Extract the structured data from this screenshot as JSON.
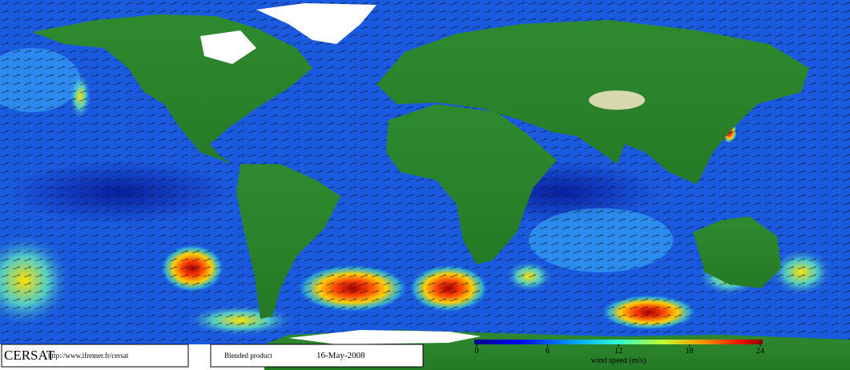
{
  "footer": {
    "logo": "CERSAT",
    "url": "http://www.ifremer.fr/cersat",
    "product": "Blended product",
    "date": "16-May-2008"
  },
  "colorbar": {
    "label": "wind speed (m/s)",
    "range": [
      0,
      24
    ],
    "ticks": [
      0,
      6,
      12,
      18,
      24
    ]
  }
}
